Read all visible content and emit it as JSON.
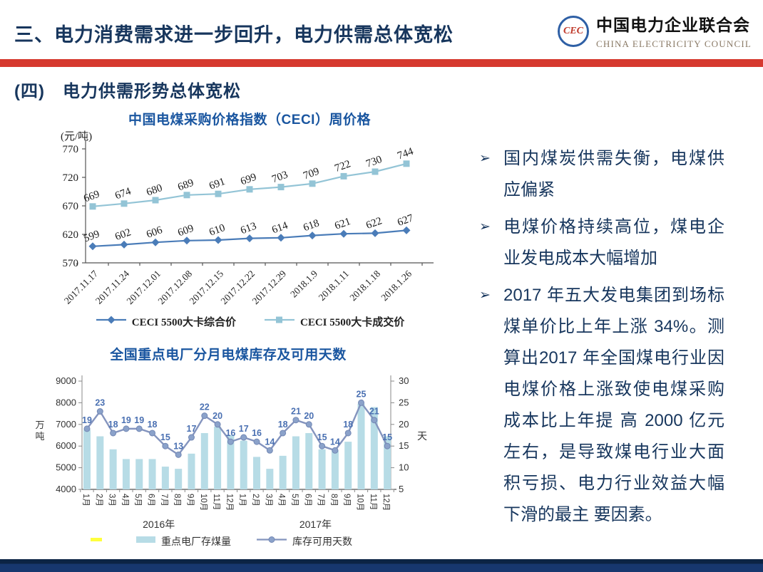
{
  "slide": {
    "title": "三、电力消费需求进一步回升，电力供需总体宽松",
    "section_heading": "(四)　电力供需形势总体宽松",
    "colors": {
      "navy": "#17365d",
      "accent_red": "#d6392f",
      "chart_title_blue": "#1a56a0",
      "footer_navy": "#17376e"
    }
  },
  "logo": {
    "monogram": "CEC",
    "name_cn": "中国电力企业联合会",
    "name_en": "CHINA ELECTRICITY COUNCIL"
  },
  "chart_data": [
    {
      "type": "line",
      "title": "中国电煤采购价格指数（CECI）周价格",
      "unit_label": "(元/吨)",
      "x": [
        "2017.11.17",
        "2017.11.24",
        "2017.12.01",
        "2017.12.08",
        "2017.12.15",
        "2017.12.22",
        "2017.12.29",
        "2018.1.9",
        "2018.1.11",
        "2018.1.18",
        "2018.1.26"
      ],
      "series": [
        {
          "name": "CECI 5500大卡综合价",
          "marker": "diamond",
          "color": "#4a7cb8",
          "values": [
            599,
            602,
            606,
            609,
            610,
            613,
            614,
            618,
            621,
            622,
            627
          ]
        },
        {
          "name": "CECI 5500大卡成交价",
          "marker": "square",
          "color": "#93c4d6",
          "values": [
            669,
            674,
            680,
            689,
            691,
            699,
            703,
            709,
            722,
            730,
            744
          ]
        }
      ],
      "ylim": [
        570,
        770
      ],
      "yticks": [
        770,
        720,
        670,
        620,
        570
      ],
      "grid": false,
      "legend_position": "bottom"
    },
    {
      "type": "bar+line",
      "title": "全国重点电厂分月电煤库存及可用天数",
      "categories": [
        "1月",
        "2月",
        "3月",
        "4月",
        "5月",
        "6月",
        "7月",
        "8月",
        "9月",
        "10月",
        "11月",
        "12月",
        "1月",
        "2月",
        "3月",
        "4月",
        "5月",
        "6月",
        "7月",
        "8月",
        "9月",
        "10月",
        "11月",
        "12月"
      ],
      "year_groups": [
        "2016年",
        "2017年"
      ],
      "left_axis": {
        "label": "万吨",
        "lim": [
          4000,
          9000
        ],
        "ticks": [
          9000,
          8000,
          7000,
          6000,
          5000,
          4000
        ]
      },
      "right_axis": {
        "label": "天",
        "lim": [
          5,
          30
        ],
        "ticks": [
          30,
          25,
          20,
          15,
          10,
          5
        ]
      },
      "bars": {
        "name": "重点电厂存煤量",
        "color": "#b7dce6",
        "values": [
          6750,
          6450,
          5850,
          5400,
          5400,
          5400,
          5050,
          4950,
          5650,
          6600,
          6900,
          6500,
          6250,
          5500,
          4950,
          5550,
          6450,
          6600,
          5850,
          5800,
          6200,
          7950,
          7800,
          6450
        ]
      },
      "line": {
        "name": "库存可用天数",
        "color": "#8494be",
        "marker_fill": "#8ba2ca",
        "label_color": "#4a70b2",
        "values": [
          19,
          23,
          18,
          19,
          19,
          18,
          15,
          13,
          17,
          22,
          20,
          16,
          17,
          16,
          14,
          18,
          21,
          20,
          15,
          14,
          18,
          25,
          21,
          15
        ]
      },
      "grid": false,
      "legend_position": "bottom"
    }
  ],
  "bullets": {
    "marker": "➢",
    "items": [
      "国内煤炭供需失衡，电煤供应偏紧",
      "电煤价格持续高位，煤电企业发电成本大幅增加",
      "2017 年五大发电集团到场标煤单价比上年上涨 34%。测算出2017 年全国煤电行业因电煤价格上涨致使电煤采购成本比上年提 高 2000 亿元左右，是导致煤电行业大面积亏损、电力行业效益大幅下滑的最主 要因素。"
    ]
  }
}
